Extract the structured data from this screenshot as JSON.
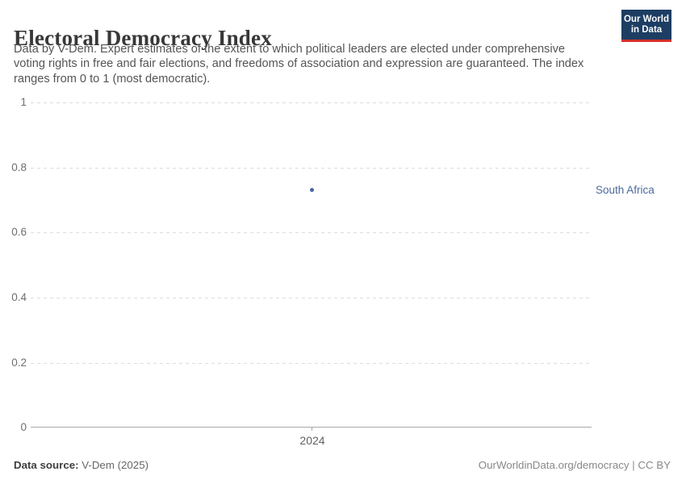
{
  "header": {
    "title": "Electoral Democracy Index",
    "subtitle_lines": [
      "Data by V-Dem. Expert estimates of the extent to which political leaders are elected under comprehensive",
      "voting rights in free and fair elections, and freedoms of association and expression are guaranteed. The index",
      "ranges from 0 to 1 (most democratic)."
    ],
    "logo": {
      "line1": "Our World",
      "line2": "in Data"
    }
  },
  "chart_data": {
    "type": "scatter",
    "title": "Electoral Democracy Index",
    "series": [
      {
        "name": "South Africa",
        "x": [
          2024
        ],
        "y": [
          0.73
        ],
        "color": "#4a679b",
        "label_color": "#4c6a9c"
      }
    ],
    "xlabel": "",
    "ylabel": "",
    "xticks": [
      2024
    ],
    "yticks": [
      0,
      0.2,
      0.4,
      0.6,
      0.8,
      1
    ],
    "ylim": [
      0,
      1
    ],
    "grid": "horizontal dashed",
    "legend_position": "right-of-point"
  },
  "axis": {
    "y_tick_labels": [
      "1",
      "0.8",
      "0.6",
      "0.4",
      "0.2",
      "0"
    ],
    "x_tick_label": "2024"
  },
  "annotation": {
    "entity_label": "South Africa"
  },
  "footer": {
    "source_label": "Data source:",
    "source_value": " V-Dem (2025)",
    "right_text": "OurWorldinData.org/democracy | CC BY"
  },
  "colors": {
    "accent_blue": "#4a679b",
    "label_blue": "#4c6a9c",
    "logo_navy": "#1d3d63",
    "logo_red": "#d7302b",
    "gridline": "#dddddd",
    "axis": "#a8a8a8"
  }
}
